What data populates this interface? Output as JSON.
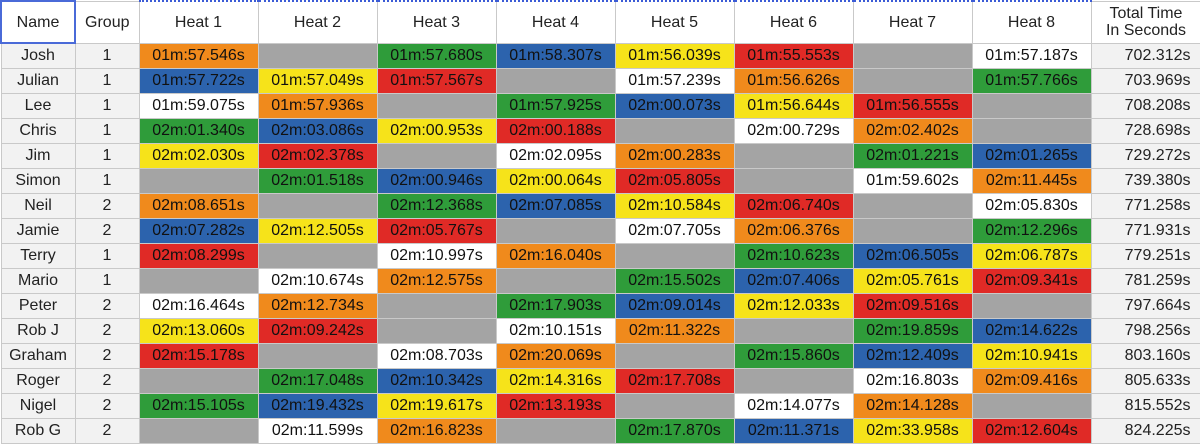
{
  "headers": {
    "name": "Name",
    "group": "Group",
    "heats": [
      "Heat 1",
      "Heat 2",
      "Heat 3",
      "Heat 4",
      "Heat 5",
      "Heat 6",
      "Heat 7",
      "Heat 8"
    ],
    "total_line1": "Total Time",
    "total_line2": "In Seconds"
  },
  "colors": {
    "orange": "#f08a1c",
    "gray": "#a4a4a4",
    "green": "#2f9c3a",
    "blue": "#2c63ad",
    "yellow": "#f6e31a",
    "red": "#e02a26",
    "white": "#ffffff"
  },
  "rows": [
    {
      "name": "Josh",
      "group": "1",
      "total": "702.312s",
      "heats": [
        {
          "time": "01m:57.546s",
          "color": "orange"
        },
        {
          "time": "",
          "color": "gray"
        },
        {
          "time": "01m:57.680s",
          "color": "green"
        },
        {
          "time": "01m:58.307s",
          "color": "blue"
        },
        {
          "time": "01m:56.039s",
          "color": "yellow"
        },
        {
          "time": "01m:55.553s",
          "color": "red"
        },
        {
          "time": "",
          "color": "gray"
        },
        {
          "time": "01m:57.187s",
          "color": "white"
        }
      ]
    },
    {
      "name": "Julian",
      "group": "1",
      "total": "703.969s",
      "heats": [
        {
          "time": "01m:57.722s",
          "color": "blue"
        },
        {
          "time": "01m:57.049s",
          "color": "yellow"
        },
        {
          "time": "01m:57.567s",
          "color": "red"
        },
        {
          "time": "",
          "color": "gray"
        },
        {
          "time": "01m:57.239s",
          "color": "white"
        },
        {
          "time": "01m:56.626s",
          "color": "orange"
        },
        {
          "time": "",
          "color": "gray"
        },
        {
          "time": "01m:57.766s",
          "color": "green"
        }
      ]
    },
    {
      "name": "Lee",
      "group": "1",
      "total": "708.208s",
      "heats": [
        {
          "time": "01m:59.075s",
          "color": "white"
        },
        {
          "time": "01m:57.936s",
          "color": "orange"
        },
        {
          "time": "",
          "color": "gray"
        },
        {
          "time": "01m:57.925s",
          "color": "green"
        },
        {
          "time": "02m:00.073s",
          "color": "blue"
        },
        {
          "time": "01m:56.644s",
          "color": "yellow"
        },
        {
          "time": "01m:56.555s",
          "color": "red"
        },
        {
          "time": "",
          "color": "gray"
        }
      ]
    },
    {
      "name": "Chris",
      "group": "1",
      "total": "728.698s",
      "heats": [
        {
          "time": "02m:01.340s",
          "color": "green"
        },
        {
          "time": "02m:03.086s",
          "color": "blue"
        },
        {
          "time": "02m:00.953s",
          "color": "yellow"
        },
        {
          "time": "02m:00.188s",
          "color": "red"
        },
        {
          "time": "",
          "color": "gray"
        },
        {
          "time": "02m:00.729s",
          "color": "white"
        },
        {
          "time": "02m:02.402s",
          "color": "orange"
        },
        {
          "time": "",
          "color": "gray"
        }
      ]
    },
    {
      "name": "Jim",
      "group": "1",
      "total": "729.272s",
      "heats": [
        {
          "time": "02m:02.030s",
          "color": "yellow"
        },
        {
          "time": "02m:02.378s",
          "color": "red"
        },
        {
          "time": "",
          "color": "gray"
        },
        {
          "time": "02m:02.095s",
          "color": "white"
        },
        {
          "time": "02m:00.283s",
          "color": "orange"
        },
        {
          "time": "",
          "color": "gray"
        },
        {
          "time": "02m:01.221s",
          "color": "green"
        },
        {
          "time": "02m:01.265s",
          "color": "blue"
        }
      ]
    },
    {
      "name": "Simon",
      "group": "1",
      "total": "739.380s",
      "heats": [
        {
          "time": "",
          "color": "gray"
        },
        {
          "time": "02m:01.518s",
          "color": "green"
        },
        {
          "time": "02m:00.946s",
          "color": "blue"
        },
        {
          "time": "02m:00.064s",
          "color": "yellow"
        },
        {
          "time": "02m:05.805s",
          "color": "red"
        },
        {
          "time": "",
          "color": "gray"
        },
        {
          "time": "01m:59.602s",
          "color": "white"
        },
        {
          "time": "02m:11.445s",
          "color": "orange"
        }
      ]
    },
    {
      "name": "Neil",
      "group": "2",
      "total": "771.258s",
      "heats": [
        {
          "time": "02m:08.651s",
          "color": "orange"
        },
        {
          "time": "",
          "color": "gray"
        },
        {
          "time": "02m:12.368s",
          "color": "green"
        },
        {
          "time": "02m:07.085s",
          "color": "blue"
        },
        {
          "time": "02m:10.584s",
          "color": "yellow"
        },
        {
          "time": "02m:06.740s",
          "color": "red"
        },
        {
          "time": "",
          "color": "gray"
        },
        {
          "time": "02m:05.830s",
          "color": "white"
        }
      ]
    },
    {
      "name": "Jamie",
      "group": "2",
      "total": "771.931s",
      "heats": [
        {
          "time": "02m:07.282s",
          "color": "blue"
        },
        {
          "time": "02m:12.505s",
          "color": "yellow"
        },
        {
          "time": "02m:05.767s",
          "color": "red"
        },
        {
          "time": "",
          "color": "gray"
        },
        {
          "time": "02m:07.705s",
          "color": "white"
        },
        {
          "time": "02m:06.376s",
          "color": "orange"
        },
        {
          "time": "",
          "color": "gray"
        },
        {
          "time": "02m:12.296s",
          "color": "green"
        }
      ]
    },
    {
      "name": "Terry",
      "group": "1",
      "total": "779.251s",
      "heats": [
        {
          "time": "02m:08.299s",
          "color": "red"
        },
        {
          "time": "",
          "color": "gray"
        },
        {
          "time": "02m:10.997s",
          "color": "white"
        },
        {
          "time": "02m:16.040s",
          "color": "orange"
        },
        {
          "time": "",
          "color": "gray"
        },
        {
          "time": "02m:10.623s",
          "color": "green"
        },
        {
          "time": "02m:06.505s",
          "color": "blue"
        },
        {
          "time": "02m:06.787s",
          "color": "yellow"
        }
      ]
    },
    {
      "name": "Mario",
      "group": "1",
      "total": "781.259s",
      "heats": [
        {
          "time": "",
          "color": "gray"
        },
        {
          "time": "02m:10.674s",
          "color": "white"
        },
        {
          "time": "02m:12.575s",
          "color": "orange"
        },
        {
          "time": "",
          "color": "gray"
        },
        {
          "time": "02m:15.502s",
          "color": "green"
        },
        {
          "time": "02m:07.406s",
          "color": "blue"
        },
        {
          "time": "02m:05.761s",
          "color": "yellow"
        },
        {
          "time": "02m:09.341s",
          "color": "red"
        }
      ]
    },
    {
      "name": "Peter",
      "group": "2",
      "total": "797.664s",
      "heats": [
        {
          "time": "02m:16.464s",
          "color": "white"
        },
        {
          "time": "02m:12.734s",
          "color": "orange"
        },
        {
          "time": "",
          "color": "gray"
        },
        {
          "time": "02m:17.903s",
          "color": "green"
        },
        {
          "time": "02m:09.014s",
          "color": "blue"
        },
        {
          "time": "02m:12.033s",
          "color": "yellow"
        },
        {
          "time": "02m:09.516s",
          "color": "red"
        },
        {
          "time": "",
          "color": "gray"
        }
      ]
    },
    {
      "name": "Rob J",
      "group": "2",
      "total": "798.256s",
      "heats": [
        {
          "time": "02m:13.060s",
          "color": "yellow"
        },
        {
          "time": "02m:09.242s",
          "color": "red"
        },
        {
          "time": "",
          "color": "gray"
        },
        {
          "time": "02m:10.151s",
          "color": "white"
        },
        {
          "time": "02m:11.322s",
          "color": "orange"
        },
        {
          "time": "",
          "color": "gray"
        },
        {
          "time": "02m:19.859s",
          "color": "green"
        },
        {
          "time": "02m:14.622s",
          "color": "blue"
        }
      ]
    },
    {
      "name": "Graham",
      "group": "2",
      "total": "803.160s",
      "heats": [
        {
          "time": "02m:15.178s",
          "color": "red"
        },
        {
          "time": "",
          "color": "gray"
        },
        {
          "time": "02m:08.703s",
          "color": "white"
        },
        {
          "time": "02m:20.069s",
          "color": "orange"
        },
        {
          "time": "",
          "color": "gray"
        },
        {
          "time": "02m:15.860s",
          "color": "green"
        },
        {
          "time": "02m:12.409s",
          "color": "blue"
        },
        {
          "time": "02m:10.941s",
          "color": "yellow"
        }
      ]
    },
    {
      "name": "Roger",
      "group": "2",
      "total": "805.633s",
      "heats": [
        {
          "time": "",
          "color": "gray"
        },
        {
          "time": "02m:17.048s",
          "color": "green"
        },
        {
          "time": "02m:10.342s",
          "color": "blue"
        },
        {
          "time": "02m:14.316s",
          "color": "yellow"
        },
        {
          "time": "02m:17.708s",
          "color": "red"
        },
        {
          "time": "",
          "color": "gray"
        },
        {
          "time": "02m:16.803s",
          "color": "white"
        },
        {
          "time": "02m:09.416s",
          "color": "orange"
        }
      ]
    },
    {
      "name": "Nigel",
      "group": "2",
      "total": "815.552s",
      "heats": [
        {
          "time": "02m:15.105s",
          "color": "green"
        },
        {
          "time": "02m:19.432s",
          "color": "blue"
        },
        {
          "time": "02m:19.617s",
          "color": "yellow"
        },
        {
          "time": "02m:13.193s",
          "color": "red"
        },
        {
          "time": "",
          "color": "gray"
        },
        {
          "time": "02m:14.077s",
          "color": "white"
        },
        {
          "time": "02m:14.128s",
          "color": "orange"
        },
        {
          "time": "",
          "color": "gray"
        }
      ]
    },
    {
      "name": "Rob G",
      "group": "2",
      "total": "824.225s",
      "heats": [
        {
          "time": "",
          "color": "gray"
        },
        {
          "time": "02m:11.599s",
          "color": "white"
        },
        {
          "time": "02m:16.823s",
          "color": "orange"
        },
        {
          "time": "",
          "color": "gray"
        },
        {
          "time": "02m:17.870s",
          "color": "green"
        },
        {
          "time": "02m:11.371s",
          "color": "blue"
        },
        {
          "time": "02m:33.958s",
          "color": "yellow"
        },
        {
          "time": "02m:12.604s",
          "color": "red"
        }
      ]
    }
  ]
}
